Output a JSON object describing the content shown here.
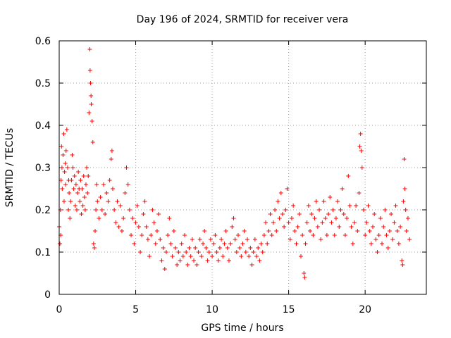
{
  "chart_data": {
    "type": "scatter",
    "title": "Day 196 of 2024, SRMTID for receiver vera",
    "xlabel": "GPS time / hours",
    "ylabel": "SRMTID / TECUs",
    "xlim": [
      0,
      24
    ],
    "ylim": [
      0,
      0.6
    ],
    "xticks": [
      0,
      5,
      10,
      15,
      20
    ],
    "xtick_labels": [
      "0",
      "5",
      "10",
      "15",
      "20"
    ],
    "yticks": [
      0,
      0.1,
      0.2,
      0.3,
      0.4,
      0.5,
      0.6
    ],
    "ytick_labels": [
      "0",
      "0.1",
      "0.2",
      "0.3",
      "0.4",
      "0.5",
      "0.6"
    ],
    "grid": true,
    "marker": "plus",
    "color": "#ff0000",
    "series": [
      {
        "name": "SRMTID",
        "points": [
          [
            0.0,
            0.16
          ],
          [
            0.05,
            0.12
          ],
          [
            0.08,
            0.2
          ],
          [
            0.1,
            0.14
          ],
          [
            0.12,
            0.27
          ],
          [
            0.15,
            0.35
          ],
          [
            0.18,
            0.3
          ],
          [
            0.2,
            0.25
          ],
          [
            0.25,
            0.33
          ],
          [
            0.3,
            0.38
          ],
          [
            0.32,
            0.22
          ],
          [
            0.35,
            0.29
          ],
          [
            0.4,
            0.31
          ],
          [
            0.42,
            0.26
          ],
          [
            0.45,
            0.34
          ],
          [
            0.5,
            0.39
          ],
          [
            0.55,
            0.3
          ],
          [
            0.6,
            0.2
          ],
          [
            0.62,
            0.27
          ],
          [
            0.65,
            0.24
          ],
          [
            0.7,
            0.18
          ],
          [
            0.75,
            0.22
          ],
          [
            0.8,
            0.27
          ],
          [
            0.85,
            0.33
          ],
          [
            0.9,
            0.3
          ],
          [
            0.95,
            0.25
          ],
          [
            1.0,
            0.28
          ],
          [
            1.05,
            0.21
          ],
          [
            1.1,
            0.26
          ],
          [
            1.15,
            0.2
          ],
          [
            1.2,
            0.24
          ],
          [
            1.25,
            0.29
          ],
          [
            1.3,
            0.25
          ],
          [
            1.35,
            0.22
          ],
          [
            1.4,
            0.27
          ],
          [
            1.45,
            0.19
          ],
          [
            1.5,
            0.25
          ],
          [
            1.55,
            0.21
          ],
          [
            1.6,
            0.28
          ],
          [
            1.65,
            0.23
          ],
          [
            1.7,
            0.2
          ],
          [
            1.75,
            0.26
          ],
          [
            1.8,
            0.3
          ],
          [
            1.85,
            0.24
          ],
          [
            1.9,
            0.28
          ],
          [
            1.95,
            0.43
          ],
          [
            2.0,
            0.58
          ],
          [
            2.02,
            0.53
          ],
          [
            2.05,
            0.5
          ],
          [
            2.08,
            0.47
          ],
          [
            2.1,
            0.45
          ],
          [
            2.15,
            0.41
          ],
          [
            2.2,
            0.36
          ],
          [
            2.25,
            0.12
          ],
          [
            2.3,
            0.11
          ],
          [
            2.35,
            0.15
          ],
          [
            2.4,
            0.2
          ],
          [
            2.45,
            0.26
          ],
          [
            2.5,
            0.22
          ],
          [
            2.6,
            0.18
          ],
          [
            2.7,
            0.23
          ],
          [
            2.8,
            0.2
          ],
          [
            2.9,
            0.26
          ],
          [
            3.0,
            0.19
          ],
          [
            3.1,
            0.24
          ],
          [
            3.2,
            0.22
          ],
          [
            3.3,
            0.27
          ],
          [
            3.4,
            0.32
          ],
          [
            3.45,
            0.34
          ],
          [
            3.5,
            0.25
          ],
          [
            3.6,
            0.2
          ],
          [
            3.7,
            0.17
          ],
          [
            3.8,
            0.22
          ],
          [
            3.9,
            0.16
          ],
          [
            4.0,
            0.21
          ],
          [
            4.1,
            0.15
          ],
          [
            4.2,
            0.18
          ],
          [
            4.3,
            0.24
          ],
          [
            4.4,
            0.3
          ],
          [
            4.5,
            0.26
          ],
          [
            4.6,
            0.2
          ],
          [
            4.7,
            0.14
          ],
          [
            4.8,
            0.18
          ],
          [
            4.9,
            0.12
          ],
          [
            5.0,
            0.17
          ],
          [
            5.1,
            0.21
          ],
          [
            5.2,
            0.16
          ],
          [
            5.3,
            0.1
          ],
          [
            5.4,
            0.14
          ],
          [
            5.5,
            0.19
          ],
          [
            5.6,
            0.22
          ],
          [
            5.7,
            0.16
          ],
          [
            5.8,
            0.13
          ],
          [
            5.9,
            0.09
          ],
          [
            6.0,
            0.14
          ],
          [
            6.1,
            0.2
          ],
          [
            6.2,
            0.17
          ],
          [
            6.3,
            0.12
          ],
          [
            6.4,
            0.15
          ],
          [
            6.5,
            0.19
          ],
          [
            6.6,
            0.13
          ],
          [
            6.7,
            0.08
          ],
          [
            6.8,
            0.11
          ],
          [
            6.9,
            0.06
          ],
          [
            7.0,
            0.1
          ],
          [
            7.1,
            0.14
          ],
          [
            7.2,
            0.18
          ],
          [
            7.3,
            0.12
          ],
          [
            7.4,
            0.09
          ],
          [
            7.5,
            0.15
          ],
          [
            7.6,
            0.11
          ],
          [
            7.7,
            0.07
          ],
          [
            7.8,
            0.1
          ],
          [
            7.9,
            0.08
          ],
          [
            8.0,
            0.12
          ],
          [
            8.1,
            0.09
          ],
          [
            8.2,
            0.14
          ],
          [
            8.3,
            0.1
          ],
          [
            8.4,
            0.07
          ],
          [
            8.5,
            0.11
          ],
          [
            8.6,
            0.09
          ],
          [
            8.7,
            0.13
          ],
          [
            8.8,
            0.08
          ],
          [
            8.9,
            0.11
          ],
          [
            9.0,
            0.07
          ],
          [
            9.1,
            0.1
          ],
          [
            9.2,
            0.13
          ],
          [
            9.3,
            0.09
          ],
          [
            9.4,
            0.12
          ],
          [
            9.5,
            0.15
          ],
          [
            9.6,
            0.11
          ],
          [
            9.7,
            0.08
          ],
          [
            9.8,
            0.1
          ],
          [
            9.9,
            0.13
          ],
          [
            10.0,
            0.09
          ],
          [
            10.1,
            0.12
          ],
          [
            10.2,
            0.14
          ],
          [
            10.3,
            0.1
          ],
          [
            10.4,
            0.08
          ],
          [
            10.5,
            0.11
          ],
          [
            10.6,
            0.13
          ],
          [
            10.7,
            0.09
          ],
          [
            10.8,
            0.12
          ],
          [
            10.9,
            0.15
          ],
          [
            11.0,
            0.11
          ],
          [
            11.1,
            0.08
          ],
          [
            11.2,
            0.12
          ],
          [
            11.3,
            0.16
          ],
          [
            11.4,
            0.18
          ],
          [
            11.5,
            0.13
          ],
          [
            11.6,
            0.1
          ],
          [
            11.7,
            0.14
          ],
          [
            11.8,
            0.11
          ],
          [
            11.9,
            0.09
          ],
          [
            12.0,
            0.12
          ],
          [
            12.1,
            0.15
          ],
          [
            12.2,
            0.1
          ],
          [
            12.3,
            0.13
          ],
          [
            12.4,
            0.09
          ],
          [
            12.5,
            0.11
          ],
          [
            12.6,
            0.07
          ],
          [
            12.7,
            0.1
          ],
          [
            12.8,
            0.13
          ],
          [
            12.9,
            0.09
          ],
          [
            13.0,
            0.11
          ],
          [
            13.1,
            0.08
          ],
          [
            13.2,
            0.12
          ],
          [
            13.3,
            0.1
          ],
          [
            13.4,
            0.14
          ],
          [
            13.5,
            0.17
          ],
          [
            13.6,
            0.12
          ],
          [
            13.7,
            0.15
          ],
          [
            13.8,
            0.19
          ],
          [
            13.9,
            0.14
          ],
          [
            14.0,
            0.17
          ],
          [
            14.1,
            0.2
          ],
          [
            14.2,
            0.15
          ],
          [
            14.3,
            0.22
          ],
          [
            14.4,
            0.18
          ],
          [
            14.5,
            0.24
          ],
          [
            14.6,
            0.19
          ],
          [
            14.7,
            0.16
          ],
          [
            14.8,
            0.2
          ],
          [
            14.9,
            0.25
          ],
          [
            15.0,
            0.17
          ],
          [
            15.1,
            0.13
          ],
          [
            15.2,
            0.18
          ],
          [
            15.3,
            0.21
          ],
          [
            15.4,
            0.15
          ],
          [
            15.5,
            0.12
          ],
          [
            15.6,
            0.16
          ],
          [
            15.7,
            0.19
          ],
          [
            15.8,
            0.09
          ],
          [
            15.9,
            0.14
          ],
          [
            16.0,
            0.05
          ],
          [
            16.05,
            0.04
          ],
          [
            16.1,
            0.12
          ],
          [
            16.2,
            0.17
          ],
          [
            16.3,
            0.21
          ],
          [
            16.4,
            0.15
          ],
          [
            16.5,
            0.19
          ],
          [
            16.6,
            0.14
          ],
          [
            16.7,
            0.18
          ],
          [
            16.8,
            0.22
          ],
          [
            16.9,
            0.16
          ],
          [
            17.0,
            0.2
          ],
          [
            17.1,
            0.13
          ],
          [
            17.2,
            0.17
          ],
          [
            17.3,
            0.22
          ],
          [
            17.4,
            0.18
          ],
          [
            17.5,
            0.14
          ],
          [
            17.6,
            0.19
          ],
          [
            17.7,
            0.23
          ],
          [
            17.8,
            0.17
          ],
          [
            17.9,
            0.2
          ],
          [
            18.0,
            0.14
          ],
          [
            18.1,
            0.18
          ],
          [
            18.2,
            0.22
          ],
          [
            18.3,
            0.16
          ],
          [
            18.4,
            0.2
          ],
          [
            18.5,
            0.25
          ],
          [
            18.6,
            0.19
          ],
          [
            18.7,
            0.14
          ],
          [
            18.8,
            0.18
          ],
          [
            18.9,
            0.28
          ],
          [
            19.0,
            0.21
          ],
          [
            19.1,
            0.16
          ],
          [
            19.2,
            0.12
          ],
          [
            19.3,
            0.17
          ],
          [
            19.4,
            0.21
          ],
          [
            19.5,
            0.15
          ],
          [
            19.6,
            0.24
          ],
          [
            19.65,
            0.35
          ],
          [
            19.7,
            0.38
          ],
          [
            19.75,
            0.34
          ],
          [
            19.8,
            0.3
          ],
          [
            19.9,
            0.2
          ],
          [
            20.0,
            0.14
          ],
          [
            20.1,
            0.17
          ],
          [
            20.2,
            0.21
          ],
          [
            20.3,
            0.15
          ],
          [
            20.4,
            0.12
          ],
          [
            20.5,
            0.16
          ],
          [
            20.6,
            0.19
          ],
          [
            20.7,
            0.13
          ],
          [
            20.8,
            0.1
          ],
          [
            20.9,
            0.14
          ],
          [
            21.0,
            0.18
          ],
          [
            21.1,
            0.12
          ],
          [
            21.2,
            0.16
          ],
          [
            21.3,
            0.2
          ],
          [
            21.4,
            0.14
          ],
          [
            21.5,
            0.11
          ],
          [
            21.6,
            0.15
          ],
          [
            21.7,
            0.19
          ],
          [
            21.8,
            0.13
          ],
          [
            21.9,
            0.17
          ],
          [
            22.0,
            0.21
          ],
          [
            22.1,
            0.15
          ],
          [
            22.2,
            0.12
          ],
          [
            22.3,
            0.16
          ],
          [
            22.4,
            0.08
          ],
          [
            22.45,
            0.07
          ],
          [
            22.5,
            0.22
          ],
          [
            22.55,
            0.32
          ],
          [
            22.6,
            0.25
          ],
          [
            22.65,
            0.2
          ],
          [
            22.7,
            0.15
          ],
          [
            22.8,
            0.18
          ],
          [
            22.9,
            0.13
          ]
        ]
      }
    ]
  }
}
